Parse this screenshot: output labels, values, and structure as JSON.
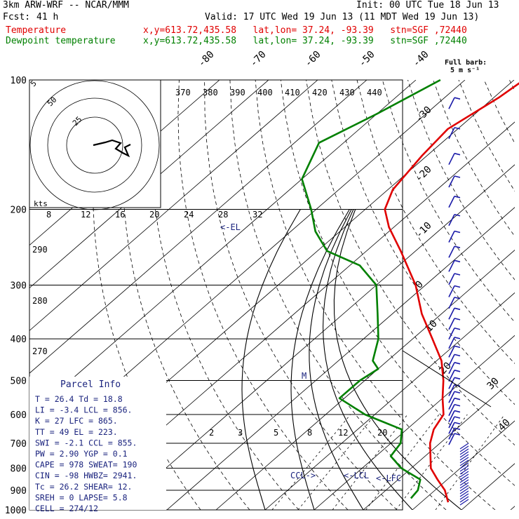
{
  "header": {
    "model": "3km ARW-WRF -- NCAR/MMM",
    "init": "Init: 00 UTC Tue 18 Jun 13",
    "fcst_label": "Fcst:",
    "fcst_value": "41 h",
    "valid": "Valid: 17 UTC Wed 19 Jun 13 (11 MDT Wed 19 Jun 13)",
    "temp_label": "Temperature",
    "dew_label": "Dewpoint temperature",
    "location": "x,y=613.72,435.58   lat,lon= 37.24, -93.39   stn=SGF ,72440"
  },
  "colors": {
    "temperature": "#e00000",
    "dewpoint": "#008000",
    "labels": "#1a237e",
    "barbs": "#1a1aa8",
    "grid": "#000000"
  },
  "chart_data": {
    "type": "skew-t",
    "pressure_levels": [
      100,
      200,
      300,
      400,
      500,
      600,
      700,
      800,
      900,
      1000
    ],
    "isotherm_labels": [
      "-80",
      "-70",
      "-60",
      "-50",
      "-40",
      "-30",
      "-20",
      "-10",
      "0",
      "10",
      "20",
      "30",
      "40"
    ],
    "theta_labels": [
      "370",
      "380",
      "390",
      "400",
      "410",
      "420",
      "430",
      "440"
    ],
    "mixing_ratio_labels": [
      "2",
      "3",
      "5",
      "8",
      "12",
      "20"
    ],
    "lower_theta_labels": [
      "290",
      "280",
      "270"
    ],
    "wind_scale_label": "kts",
    "wind_scale_ticks": [
      "8",
      "12",
      "16",
      "20",
      "24",
      "28",
      "32"
    ],
    "hodograph_rings": [
      "5",
      "25",
      "50"
    ],
    "barb_legend": [
      "Full barb:",
      "5 m s⁻¹"
    ],
    "markers": {
      "el": "<-EL",
      "lcl": "<-LCL",
      "lfc": "<-LFC",
      "ccl": "CCL->",
      "m": "M"
    },
    "temperature": [
      [
        960,
        25.5
      ],
      [
        900,
        22
      ],
      [
        850,
        18
      ],
      [
        800,
        14
      ],
      [
        700,
        8
      ],
      [
        650,
        5.5
      ],
      [
        600,
        4
      ],
      [
        550,
        0
      ],
      [
        500,
        -4
      ],
      [
        450,
        -9
      ],
      [
        400,
        -16
      ],
      [
        350,
        -24
      ],
      [
        300,
        -32
      ],
      [
        250,
        -43
      ],
      [
        220,
        -51
      ],
      [
        200,
        -56
      ],
      [
        180,
        -59
      ],
      [
        150,
        -61
      ],
      [
        130,
        -62
      ],
      [
        110,
        -59
      ],
      [
        100,
        -58
      ]
    ],
    "dewpoint": [
      [
        940,
        17
      ],
      [
        900,
        16.5
      ],
      [
        850,
        14.5
      ],
      [
        800,
        8
      ],
      [
        750,
        3
      ],
      [
        700,
        2
      ],
      [
        650,
        -1
      ],
      [
        600,
        -12
      ],
      [
        550,
        -21
      ],
      [
        500,
        -21
      ],
      [
        470,
        -20
      ],
      [
        450,
        -23
      ],
      [
        400,
        -27
      ],
      [
        350,
        -33
      ],
      [
        300,
        -40
      ],
      [
        270,
        -48
      ],
      [
        250,
        -58
      ],
      [
        225,
        -65
      ],
      [
        200,
        -71
      ],
      [
        170,
        -80
      ],
      [
        140,
        -85
      ],
      [
        120,
        -80
      ],
      [
        100,
        -75
      ]
    ]
  },
  "parcel_info": {
    "title": "Parcel Info",
    "rows": [
      "T  =   26.4  Td =  18.8",
      "LI =   -3.4  LCL =  856.",
      "K  =     27  LFC =  865.",
      "TT =     49  EL  =  223.",
      "SWI =  -2.1  CCL =  855.",
      "PW =   2.90  YGP =   0.1",
      "CAPE =  978  SWEAT=  190",
      "CIN =   -98  HWBZ= 2941.",
      "Tc =   26.2  SHEAR=   12.",
      "SREH =    0  LAPSE=   5.8",
      "CELL = 274/12"
    ]
  }
}
